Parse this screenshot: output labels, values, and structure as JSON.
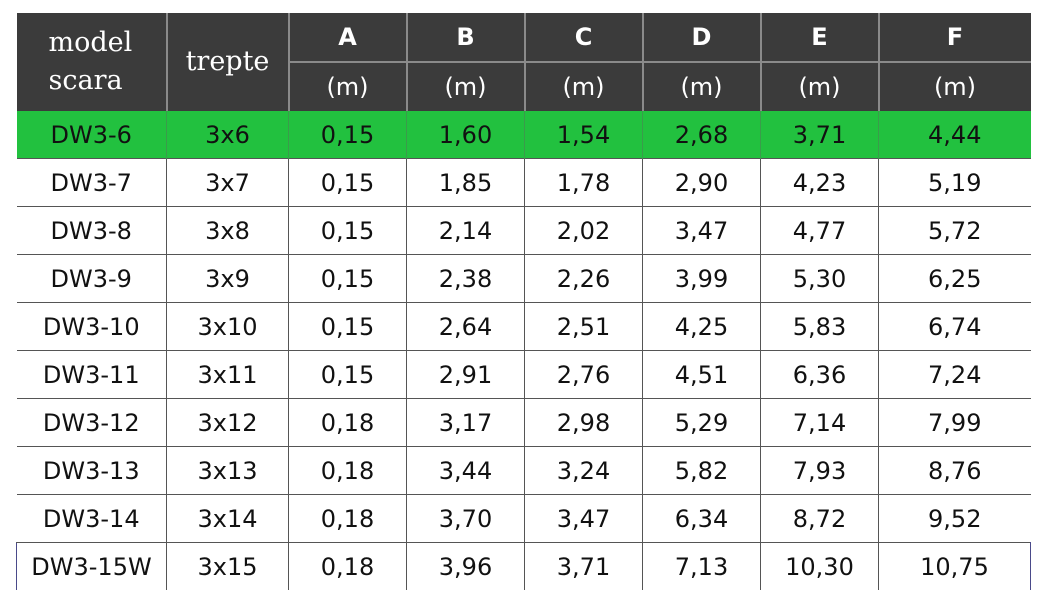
{
  "header": {
    "model_line1": "model",
    "model_line2": "scara",
    "steps": "trepte",
    "dims": [
      {
        "letter": "A",
        "unit": "(m)"
      },
      {
        "letter": "B",
        "unit": "(m)"
      },
      {
        "letter": "C",
        "unit": "(m)"
      },
      {
        "letter": "D",
        "unit": "(m)"
      },
      {
        "letter": "E",
        "unit": "(m)"
      },
      {
        "letter": "F",
        "unit": "(m)"
      }
    ]
  },
  "highlight_color": "#22c13f",
  "rows": [
    {
      "model": "DW3-6",
      "steps": "3x6",
      "vals": [
        "0,15",
        "1,60",
        "1,54",
        "2,68",
        "3,71",
        "4,44"
      ]
    },
    {
      "model": "DW3-7",
      "steps": "3x7",
      "vals": [
        "0,15",
        "1,85",
        "1,78",
        "2,90",
        "4,23",
        "5,19"
      ]
    },
    {
      "model": "DW3-8",
      "steps": "3x8",
      "vals": [
        "0,15",
        "2,14",
        "2,02",
        "3,47",
        "4,77",
        "5,72"
      ]
    },
    {
      "model": "DW3-9",
      "steps": "3x9",
      "vals": [
        "0,15",
        "2,38",
        "2,26",
        "3,99",
        "5,30",
        "6,25"
      ]
    },
    {
      "model": "DW3-10",
      "steps": "3x10",
      "vals": [
        "0,15",
        "2,64",
        "2,51",
        "4,25",
        "5,83",
        "6,74"
      ]
    },
    {
      "model": "DW3-11",
      "steps": "3x11",
      "vals": [
        "0,15",
        "2,91",
        "2,76",
        "4,51",
        "6,36",
        "7,24"
      ]
    },
    {
      "model": "DW3-12",
      "steps": "3x12",
      "vals": [
        "0,18",
        "3,17",
        "2,98",
        "5,29",
        "7,14",
        "7,99"
      ]
    },
    {
      "model": "DW3-13",
      "steps": "3x13",
      "vals": [
        "0,18",
        "3,44",
        "3,24",
        "5,82",
        "7,93",
        "8,76"
      ]
    },
    {
      "model": "DW3-14",
      "steps": "3x14",
      "vals": [
        "0,18",
        "3,70",
        "3,47",
        "6,34",
        "8,72",
        "9,52"
      ]
    },
    {
      "model": "DW3-15W",
      "steps": "3x15",
      "vals": [
        "0,18",
        "3,96",
        "3,71",
        "7,13",
        "10,30",
        "10,75"
      ]
    }
  ]
}
